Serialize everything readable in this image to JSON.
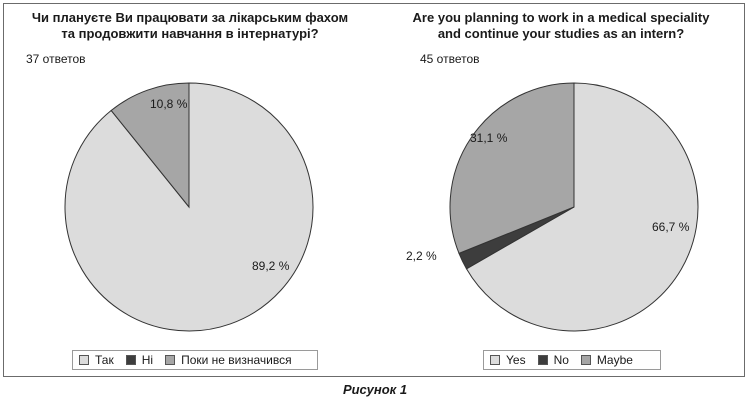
{
  "chart_data": [
    {
      "type": "pie",
      "title": [
        "Чи плануєте Ви працювати за лікарським фахом",
        "та продовжити навчання в інтернатурі?"
      ],
      "response_count": "37 ответов",
      "slices": [
        {
          "name": "Так",
          "value": 89.2,
          "label": "89,2 %",
          "color": "#dcdcdc"
        },
        {
          "name": "Ні",
          "value": 0.0,
          "label": "",
          "color": "#3d3d3d"
        },
        {
          "name": "Поки не визначився",
          "value": 10.8,
          "label": "10,8 %",
          "color": "#a6a6a6"
        }
      ],
      "start": "top-clockwise",
      "legend_position": "bottom"
    },
    {
      "type": "pie",
      "title": [
        "Are you planning to work in a medical speciality",
        "and continue your studies as an intern?"
      ],
      "response_count": "45 ответов",
      "slices": [
        {
          "name": "Yes",
          "value": 66.7,
          "label": "66,7 %",
          "color": "#dcdcdc"
        },
        {
          "name": "No",
          "value": 2.2,
          "label": "2,2 %",
          "color": "#3d3d3d"
        },
        {
          "name": "Maybe",
          "value": 31.1,
          "label": "31,1 %",
          "color": "#a6a6a6"
        }
      ],
      "start": "top-clockwise",
      "legend_position": "bottom"
    }
  ],
  "figure_caption": "Рисунок 1"
}
